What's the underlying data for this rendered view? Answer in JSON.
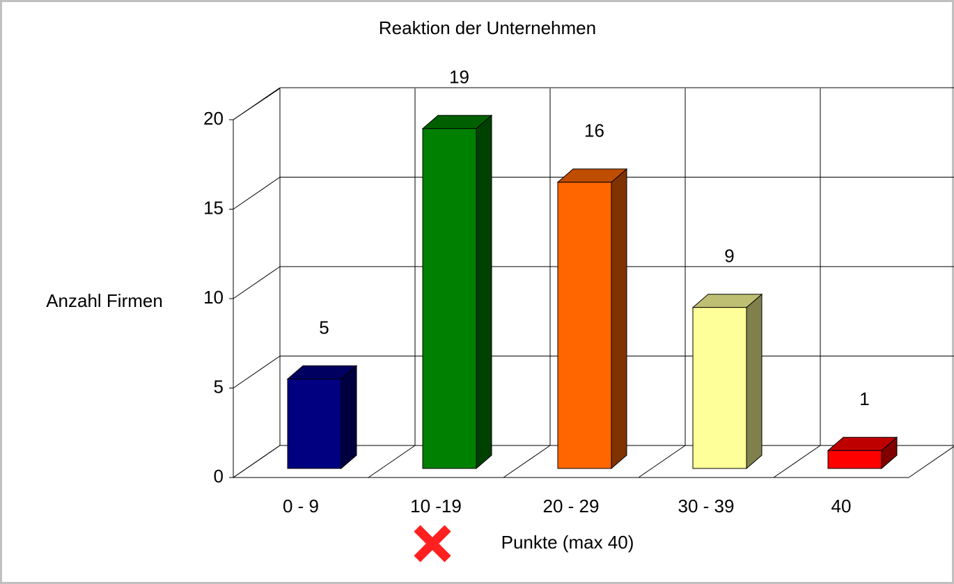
{
  "chart_data": {
    "type": "bar3d",
    "title": "Reaktion der Unternehmen",
    "y_label": "Anzahl  Firmen",
    "x_label": "Punkte (max 40)",
    "categories": [
      "0 - 9",
      "10 -19",
      "20 - 29",
      "30 - 39",
      "40"
    ],
    "values": [
      5,
      19,
      16,
      9,
      1
    ],
    "colors": [
      "#000080",
      "#008000",
      "#ff6600",
      "#ffff99",
      "#ff0000"
    ],
    "ylim": [
      0,
      20
    ],
    "yticks": [
      0,
      5,
      10,
      15,
      20
    ],
    "grid": true
  }
}
